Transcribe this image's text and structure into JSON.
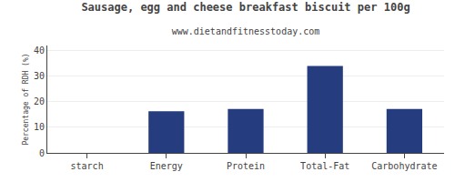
{
  "chart_data": {
    "type": "bar",
    "title": "Sausage, egg and cheese breakfast biscuit per 100g",
    "subtitle": "www.dietandfitnesstoday.com",
    "categories": [
      "starch",
      "Energy",
      "Protein",
      "Total-Fat",
      "Carbohydrate"
    ],
    "values": [
      0,
      16.3,
      17.2,
      34.0,
      17.2
    ],
    "color": "#253d7f",
    "ylabel": "Percentage of RDH (%)",
    "ylim": [
      0,
      42
    ],
    "yticks": [
      0,
      10,
      20,
      30,
      40
    ],
    "grid": true
  }
}
